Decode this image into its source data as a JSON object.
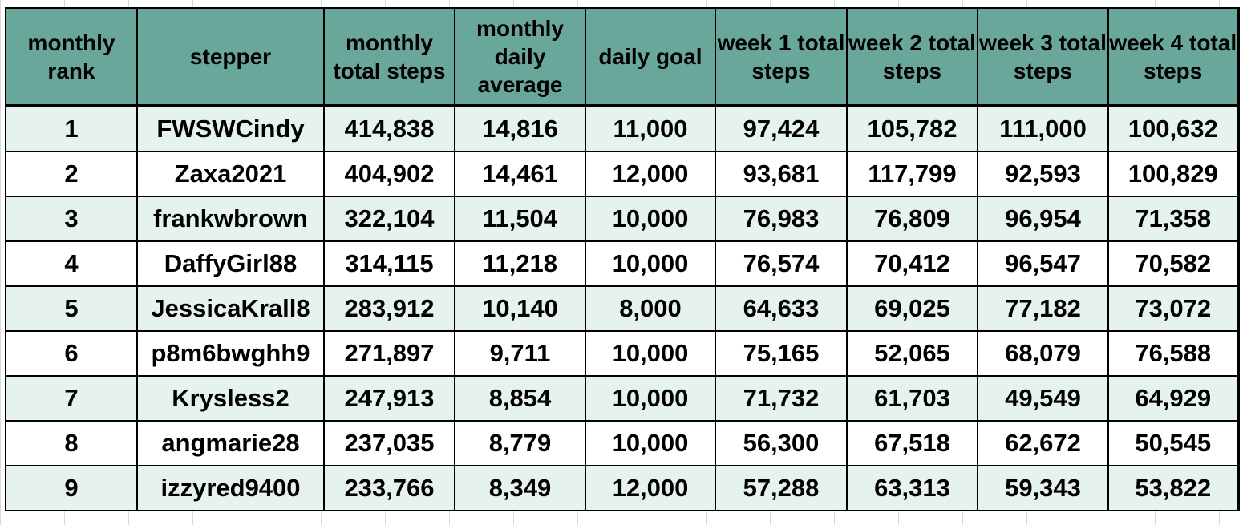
{
  "table": {
    "headers": [
      "monthly rank",
      "stepper",
      "monthly total steps",
      "monthly daily average",
      "daily goal",
      "week 1 total steps",
      "week 2 total steps",
      "week 3 total steps",
      "week 4 total steps"
    ],
    "rows": [
      [
        "1",
        "FWSWCindy",
        "414,838",
        "14,816",
        "11,000",
        "97,424",
        "105,782",
        "111,000",
        "100,632"
      ],
      [
        "2",
        "Zaxa2021",
        "404,902",
        "14,461",
        "12,000",
        "93,681",
        "117,799",
        "92,593",
        "100,829"
      ],
      [
        "3",
        "frankwbrown",
        "322,104",
        "11,504",
        "10,000",
        "76,983",
        "76,809",
        "96,954",
        "71,358"
      ],
      [
        "4",
        "DaffyGirl88",
        "314,115",
        "11,218",
        "10,000",
        "76,574",
        "70,412",
        "96,547",
        "70,582"
      ],
      [
        "5",
        "JessicaKrall8",
        "283,912",
        "10,140",
        "8,000",
        "64,633",
        "69,025",
        "77,182",
        "73,072"
      ],
      [
        "6",
        "p8m6bwghh9",
        "271,897",
        "9,711",
        "10,000",
        "75,165",
        "52,065",
        "68,079",
        "76,588"
      ],
      [
        "7",
        "Krysless2",
        "247,913",
        "8,854",
        "10,000",
        "71,732",
        "61,703",
        "49,549",
        "64,929"
      ],
      [
        "8",
        "angmarie28",
        "237,035",
        "8,779",
        "10,000",
        "56,300",
        "67,518",
        "62,672",
        "50,545"
      ],
      [
        "9",
        "izzyred9400",
        "233,766",
        "8,349",
        "12,000",
        "57,288",
        "63,313",
        "59,343",
        "53,822"
      ]
    ]
  }
}
